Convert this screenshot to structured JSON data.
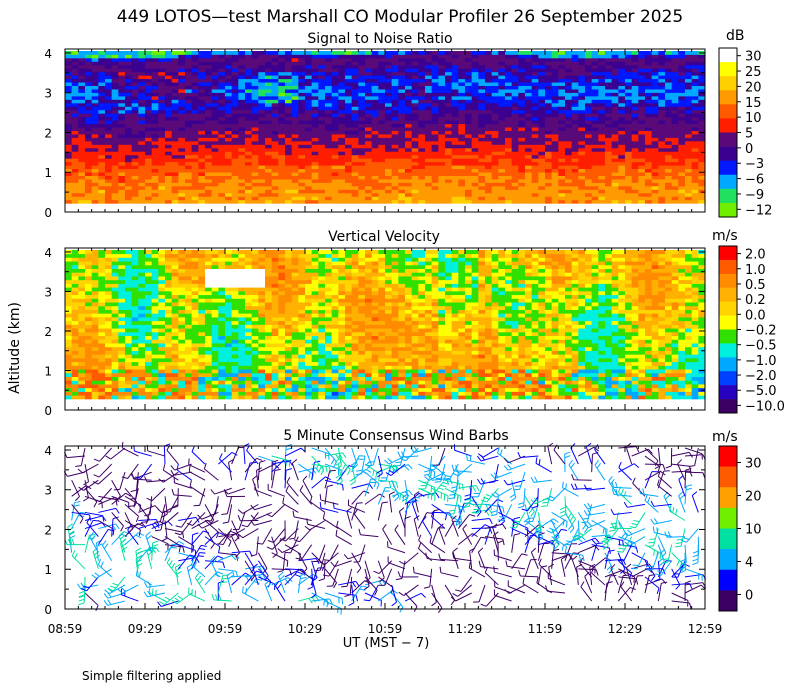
{
  "title": "449 LOTOS—test Marshall CO Modular Profiler 26 September 2025",
  "ylabel": "Altitude (km)",
  "xlabel": "UT  (MST − 7)",
  "footnote": "Simple filtering applied",
  "chart_data": [
    {
      "type": "heatmap",
      "title": "Signal to Noise Ratio",
      "x_ticks": [
        "08:59",
        "09:29",
        "09:59",
        "10:29",
        "10:59",
        "11:29",
        "11:59",
        "12:29",
        "12:59"
      ],
      "y_ticks": [
        "0",
        "1",
        "2",
        "3",
        "4"
      ],
      "ylim": [
        0,
        4.1
      ],
      "colorbar": {
        "unit": "dB",
        "labels": [
          "30",
          "25",
          "20",
          "15",
          "10",
          "5",
          "0",
          "−3",
          "−6",
          "−9",
          "−12"
        ],
        "colors": [
          "#ffffff",
          "#ffff00",
          "#ffd000",
          "#ff9a00",
          "#ff5a00",
          "#ff1e00",
          "#5a0a78",
          "#3c0090",
          "#0018ff",
          "#00a8ff",
          "#20e060",
          "#70f000"
        ]
      },
      "profile": [
        {
          "z": 0.3,
          "v": 16
        },
        {
          "z": 0.7,
          "v": 14
        },
        {
          "z": 1.0,
          "v": 11
        },
        {
          "z": 1.4,
          "v": 8
        },
        {
          "z": 1.8,
          "v": 4
        },
        {
          "z": 2.2,
          "v": 1
        },
        {
          "z": 2.6,
          "v": -3
        },
        {
          "z": 3.0,
          "v": -6
        },
        {
          "z": 3.4,
          "v": -3
        },
        {
          "z": 3.8,
          "v": 2
        },
        {
          "z": 4.0,
          "v": -10
        }
      ]
    },
    {
      "type": "heatmap",
      "title": "Vertical Velocity",
      "x_ticks": [
        "08:59",
        "09:29",
        "09:59",
        "10:29",
        "10:59",
        "11:29",
        "11:59",
        "12:29",
        "12:59"
      ],
      "y_ticks": [
        "0",
        "1",
        "2",
        "3",
        "4"
      ],
      "ylim": [
        0,
        4.1
      ],
      "colorbar": {
        "unit": "m/s",
        "labels": [
          "2.0",
          "1.0",
          "0.5",
          "0.2",
          "0.0",
          "−0.2",
          "−0.5",
          "−1.0",
          "−2.0",
          "−5.0",
          "−10.0"
        ],
        "colors": [
          "#ff0000",
          "#ff5a00",
          "#ff8c00",
          "#ffb000",
          "#ffd400",
          "#ffff00",
          "#30e000",
          "#00f0e0",
          "#00a8ff",
          "#0040ff",
          "#2800c0",
          "#3c0064"
        ]
      },
      "profile": [
        {
          "z": 0.3,
          "v": 0.0
        },
        {
          "z": 1.0,
          "v": 0.2
        },
        {
          "z": 2.0,
          "v": 0.5
        },
        {
          "z": 3.0,
          "v": 0.2
        },
        {
          "z": 4.0,
          "v": 0.0
        }
      ]
    },
    {
      "type": "wind_barbs",
      "title": "5 Minute Consensus Wind Barbs",
      "x_ticks": [
        "08:59",
        "09:29",
        "09:59",
        "10:29",
        "10:59",
        "11:29",
        "11:59",
        "12:29",
        "12:59"
      ],
      "y_ticks": [
        "0",
        "1",
        "2",
        "3",
        "4"
      ],
      "ylim": [
        0,
        4.1
      ],
      "colorbar": {
        "unit": "m/s",
        "labels": [
          "30",
          "20",
          "10",
          "4",
          "0"
        ],
        "colors": [
          "#ff0000",
          "#ff5a00",
          "#ffa000",
          "#70f000",
          "#00e0a0",
          "#00a8ff",
          "#0000ff",
          "#3c0064"
        ]
      },
      "speed_range_ms": [
        0,
        12
      ]
    }
  ]
}
